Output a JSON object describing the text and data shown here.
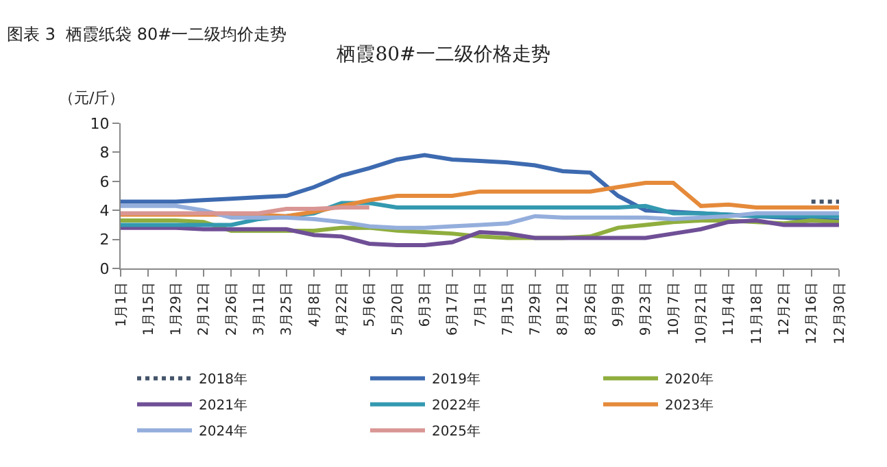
{
  "chart_data": {
    "type": "line",
    "title": "栖霞80#一二级价格走势",
    "annotations": [
      "图表 3  栖霞纸袋 80#一二级均价走势"
    ],
    "ylabel": "（元/斤）",
    "categories": [
      "1月1日",
      "1月15日",
      "1月29日",
      "2月12日",
      "2月26日",
      "3月11日",
      "3月25日",
      "4月8日",
      "4月22日",
      "5月6日",
      "5月20日",
      "6月3日",
      "6月17日",
      "7月1日",
      "7月15日",
      "7月29日",
      "8月12日",
      "8月26日",
      "9月9日",
      "9月23日",
      "10月7日",
      "10月21日",
      "11月4日",
      "11月18日",
      "12月2日",
      "12月16日",
      "12月30日"
    ],
    "ylim": [
      0,
      10
    ],
    "yticks": [
      0,
      2,
      4,
      6,
      8,
      10
    ],
    "legend": "bottom",
    "marker": "none",
    "series": [
      {
        "name": "2018年",
        "color": "#44546a",
        "line_style": "dotted",
        "values": [
          null,
          null,
          null,
          null,
          null,
          null,
          null,
          null,
          null,
          null,
          null,
          null,
          null,
          null,
          null,
          null,
          null,
          null,
          null,
          null,
          null,
          null,
          null,
          null,
          null,
          4.6,
          4.6
        ]
      },
      {
        "name": "2019年",
        "color": "#3d6ab0",
        "values": [
          4.6,
          4.6,
          4.6,
          4.7,
          4.8,
          4.9,
          5.0,
          5.6,
          6.4,
          6.9,
          7.5,
          7.8,
          7.5,
          7.4,
          7.3,
          7.1,
          6.7,
          6.6,
          5.0,
          4.0,
          3.9,
          3.8,
          3.7,
          3.6,
          3.5,
          3.4,
          3.3
        ]
      },
      {
        "name": "2020年",
        "color": "#8fae3e",
        "values": [
          3.3,
          3.3,
          3.3,
          3.2,
          2.6,
          2.6,
          2.6,
          2.6,
          2.8,
          2.8,
          2.6,
          2.5,
          2.4,
          2.2,
          2.1,
          2.1,
          2.1,
          2.2,
          2.8,
          3.0,
          3.2,
          3.3,
          3.3,
          3.2,
          3.1,
          3.3,
          3.2
        ]
      },
      {
        "name": "2021年",
        "color": "#6f4f96",
        "values": [
          2.8,
          2.8,
          2.8,
          2.7,
          2.7,
          2.7,
          2.7,
          2.3,
          2.2,
          1.7,
          1.6,
          1.6,
          1.8,
          2.5,
          2.4,
          2.1,
          2.1,
          2.1,
          2.1,
          2.1,
          2.4,
          2.7,
          3.2,
          3.3,
          3.0,
          3.0,
          3.0
        ]
      },
      {
        "name": "2022年",
        "color": "#3399b0",
        "values": [
          3.0,
          3.0,
          3.0,
          3.0,
          3.0,
          3.4,
          3.6,
          3.8,
          4.5,
          4.5,
          4.2,
          4.2,
          4.2,
          4.2,
          4.2,
          4.2,
          4.2,
          4.2,
          4.2,
          4.3,
          3.8,
          3.8,
          3.7,
          3.6,
          3.6,
          3.6,
          3.6
        ]
      },
      {
        "name": "2023年",
        "color": "#e58a3a",
        "values": [
          3.7,
          3.7,
          3.7,
          3.7,
          3.7,
          3.7,
          3.6,
          3.9,
          4.3,
          4.7,
          5.0,
          5.0,
          5.0,
          5.3,
          5.3,
          5.3,
          5.3,
          5.3,
          5.6,
          5.9,
          5.9,
          4.3,
          4.4,
          4.2,
          4.2,
          4.2,
          4.2
        ]
      },
      {
        "name": "2024年",
        "color": "#94aedc",
        "values": [
          4.3,
          4.3,
          4.3,
          4.0,
          3.5,
          3.5,
          3.5,
          3.4,
          3.2,
          2.9,
          2.8,
          2.8,
          2.9,
          3.0,
          3.1,
          3.6,
          3.5,
          3.5,
          3.5,
          3.5,
          3.4,
          3.5,
          3.6,
          3.8,
          3.8,
          3.8,
          3.8
        ]
      },
      {
        "name": "2025年",
        "color": "#d99694",
        "values": [
          3.8,
          3.8,
          3.8,
          3.8,
          3.8,
          3.8,
          4.1,
          4.1,
          4.2,
          4.2,
          null,
          null,
          null,
          null,
          null,
          null,
          null,
          null,
          null,
          null,
          null,
          null,
          null,
          null,
          null,
          null,
          null
        ]
      }
    ]
  }
}
